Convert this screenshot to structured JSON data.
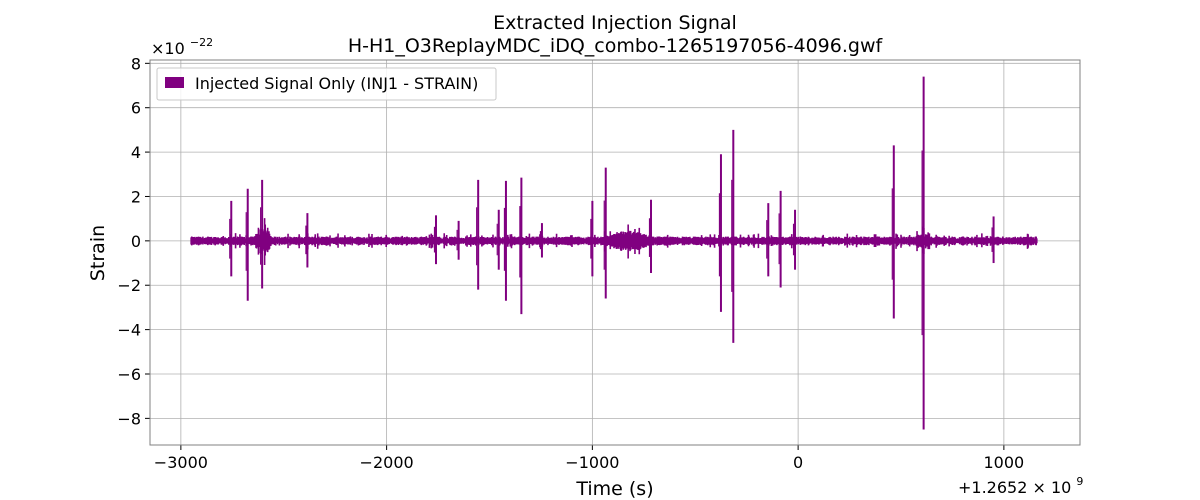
{
  "chart_data": {
    "type": "line",
    "title": "Extracted Injection Signal",
    "subtitle": "H-H1_O3ReplayMDC_iDQ_combo-1265197056-4096.gwf",
    "xlabel": "Time (s)",
    "ylabel": "Strain",
    "x_offset_label": "+1.2652 × 10",
    "x_offset_exponent": "9",
    "y_multiplier_label": "×10",
    "y_multiplier_exponent": "−22",
    "xlim": [
      -3150,
      1370
    ],
    "ylim": [
      -9.2,
      8.15
    ],
    "xticks": [
      -3000,
      -2000,
      -1000,
      0,
      1000
    ],
    "xtick_labels": [
      "−3000",
      "−2000",
      "−1000",
      "0",
      "1000"
    ],
    "yticks": [
      -8,
      -6,
      -4,
      -2,
      0,
      2,
      4,
      6,
      8
    ],
    "ytick_labels": [
      "−8",
      "−6",
      "−4",
      "−2",
      "0",
      "2",
      "4",
      "6",
      "8"
    ],
    "grid": true,
    "legend_position": "top-left",
    "color": "#800080",
    "series": [
      {
        "name": "Injected Signal Only (INJ1 - STRAIN)",
        "x_range": [
          -2950,
          1160
        ],
        "baseline_amplitude": 0.15,
        "spikes": [
          {
            "x": -2755,
            "max": 1.8,
            "min": -1.6
          },
          {
            "x": -2675,
            "max": 2.35,
            "min": -2.7
          },
          {
            "x": -2605,
            "max": 2.75,
            "min": -2.15
          },
          {
            "x": -2385,
            "max": 1.25,
            "min": -1.2
          },
          {
            "x": -1760,
            "max": 1.15,
            "min": -1.05
          },
          {
            "x": -1650,
            "max": 0.9,
            "min": -0.85
          },
          {
            "x": -1555,
            "max": 2.75,
            "min": -2.2
          },
          {
            "x": -1455,
            "max": 1.4,
            "min": -1.3
          },
          {
            "x": -1420,
            "max": 2.7,
            "min": -2.7
          },
          {
            "x": -1345,
            "max": 2.85,
            "min": -3.3
          },
          {
            "x": -1245,
            "max": 0.8,
            "min": -0.75
          },
          {
            "x": -1000,
            "max": 1.8,
            "min": -1.6
          },
          {
            "x": -935,
            "max": 3.3,
            "min": -2.6
          },
          {
            "x": -715,
            "max": 1.85,
            "min": -1.45
          },
          {
            "x": -375,
            "max": 3.9,
            "min": -3.2
          },
          {
            "x": -315,
            "max": 5.0,
            "min": -4.6
          },
          {
            "x": -145,
            "max": 1.7,
            "min": -1.6
          },
          {
            "x": -85,
            "max": 2.25,
            "min": -2.1
          },
          {
            "x": -15,
            "max": 1.4,
            "min": -1.3
          },
          {
            "x": 465,
            "max": 4.3,
            "min": -3.5
          },
          {
            "x": 610,
            "max": 7.4,
            "min": -8.5
          },
          {
            "x": 950,
            "max": 1.1,
            "min": -1.0
          }
        ],
        "bursts": [
          {
            "x_start": -2640,
            "x_end": -2560,
            "amplitude": 0.6
          },
          {
            "x_start": -960,
            "x_end": -700,
            "amplitude": 0.45
          },
          {
            "x_start": 560,
            "x_end": 650,
            "amplitude": 0.35
          }
        ]
      }
    ]
  }
}
